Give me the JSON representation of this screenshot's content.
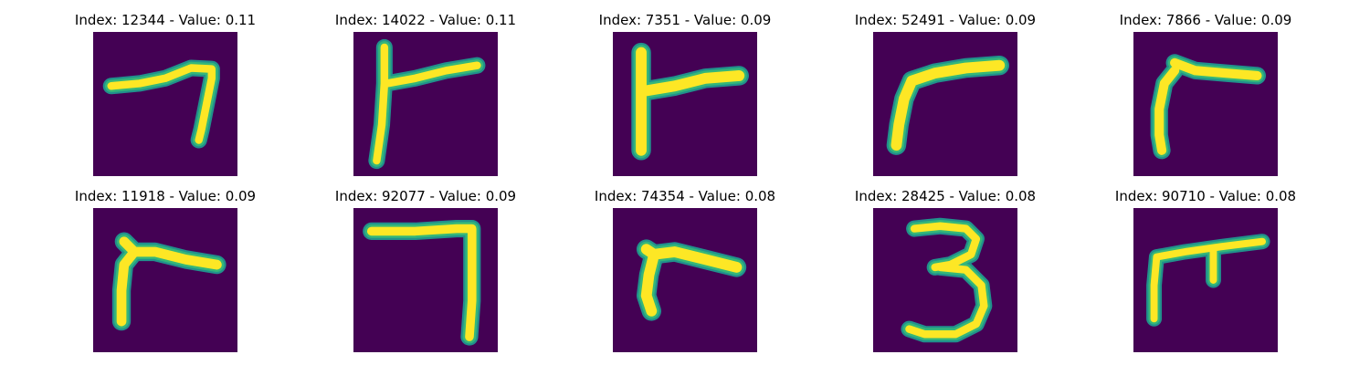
{
  "grid": {
    "panels": [
      {
        "title": "Index: 12344 - Value: 0.11",
        "glyph": "seven-hook-glyph"
      },
      {
        "title": "Index: 14022 - Value: 0.11",
        "glyph": "vertical-bar-with-arm-glyph"
      },
      {
        "title": "Index: 7351 - Value: 0.09",
        "glyph": "vertical-bar-with-arm-glyph"
      },
      {
        "title": "Index: 52491 - Value: 0.09",
        "glyph": "curved-r-glyph"
      },
      {
        "title": "Index: 7866 - Value: 0.09",
        "glyph": "curved-r-glyph"
      },
      {
        "title": "Index: 11918 - Value: 0.09",
        "glyph": "slanted-r-glyph"
      },
      {
        "title": "Index: 92077 - Value: 0.09",
        "glyph": "seven-glyph"
      },
      {
        "title": "Index: 74354 - Value: 0.08",
        "glyph": "slanted-r-glyph"
      },
      {
        "title": "Index: 28425 - Value: 0.08",
        "glyph": "digit-three-glyph"
      },
      {
        "title": "Index: 90710 - Value: 0.08",
        "glyph": "pi-like-glyph"
      }
    ]
  },
  "colors": {
    "background": "#440154",
    "stroke_core": "#fde725",
    "stroke_edge": "#35b779",
    "stroke_halo": "#21918c"
  }
}
